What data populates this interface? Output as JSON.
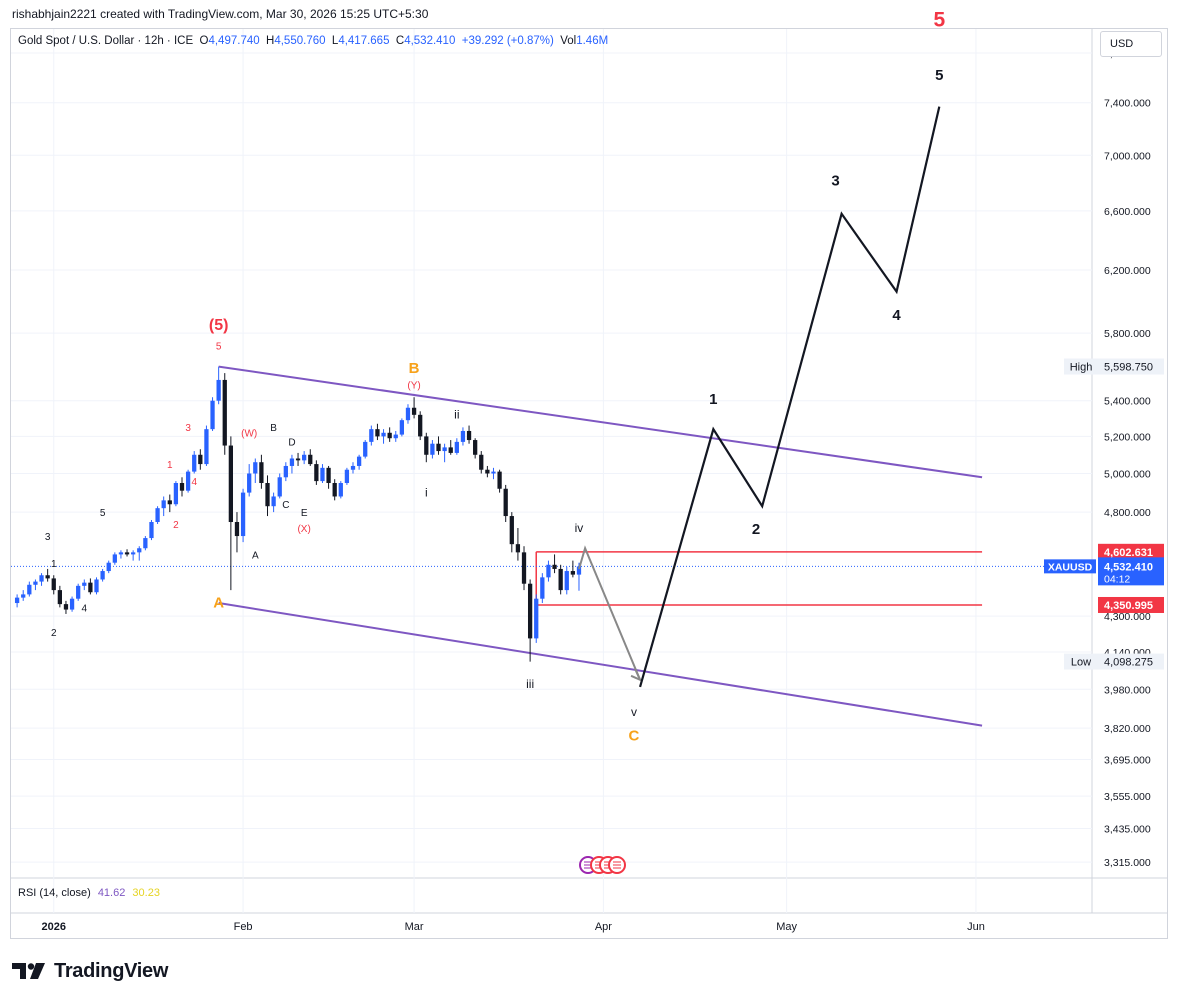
{
  "header": {
    "credit": "rishabhjain2221 created with TradingView.com, Mar 30, 2026 15:25 UTC+5:30"
  },
  "legend": {
    "symbol": "Gold Spot / U.S. Dollar · 12h · ICE",
    "o_label": "O",
    "o": "4,497.740",
    "h_label": "H",
    "h": "4,550.760",
    "l_label": "L",
    "l": "4,417.665",
    "c_label": "C",
    "c": "4,532.410",
    "change": "+39.292 (+0.87%)",
    "vol_label": "Vol",
    "vol": "1.46M"
  },
  "currency": "USD",
  "rsi": {
    "label": "RSI (14, close)",
    "value1": "41.62",
    "value2": "30.23"
  },
  "brand": {
    "name": "TradingView"
  },
  "colors": {
    "up": "#2962ff",
    "down": "#131722",
    "channel": "#7e57c2",
    "box": "#f23645",
    "orange": "#f7a21b",
    "red": "#f23645"
  },
  "chart_data": {
    "type": "candlestick",
    "symbol": "XAUUSD",
    "y_scale": "log",
    "ylim": [
      3260,
      8000
    ],
    "y_ticks": [
      {
        "value": 7800,
        "label": "7,800.000"
      },
      {
        "value": 7400,
        "label": "7,400.000"
      },
      {
        "value": 7000,
        "label": "7,000.000"
      },
      {
        "value": 6600,
        "label": "6,600.000"
      },
      {
        "value": 6200,
        "label": "6,200.000"
      },
      {
        "value": 5800,
        "label": "5,800.000"
      },
      {
        "value": 5400,
        "label": "5,400.000"
      },
      {
        "value": 5200,
        "label": "5,200.000"
      },
      {
        "value": 5000,
        "label": "5,000.000"
      },
      {
        "value": 4800,
        "label": "4,800.000"
      },
      {
        "value": 4300,
        "label": "4,300.000"
      },
      {
        "value": 4140,
        "label": "4,140.000"
      },
      {
        "value": 3980,
        "label": "3,980.000"
      },
      {
        "value": 3820,
        "label": "3,820.000"
      },
      {
        "value": 3695,
        "label": "3,695.000"
      },
      {
        "value": 3555,
        "label": "3,555.000"
      },
      {
        "value": 3435,
        "label": "3,435.000"
      },
      {
        "value": 3315,
        "label": "3,315.000"
      }
    ],
    "x_ticks": [
      {
        "date": "2026-01-01",
        "label": "2026",
        "bold": true
      },
      {
        "date": "2026-02-01",
        "label": "Feb"
      },
      {
        "date": "2026-03-01",
        "label": "Mar"
      },
      {
        "date": "2026-04-01",
        "label": "Apr"
      },
      {
        "date": "2026-05-01",
        "label": "May"
      },
      {
        "date": "2026-06-01",
        "label": "Jun"
      }
    ],
    "xlim": [
      "2025-12-25",
      "2026-06-20"
    ],
    "price_badges": [
      {
        "value": 4602.631,
        "label": "4,602.631",
        "color": "#f23645"
      },
      {
        "value": 4532.41,
        "label": "4,532.410",
        "color": "#2962ff",
        "symbol": "XAUUSD",
        "timer": "04:12"
      },
      {
        "value": 4350.995,
        "label": "4,350.995",
        "color": "#f23645"
      }
    ],
    "high": {
      "label": "High",
      "value": 5598.75,
      "value_label": "5,598.750"
    },
    "low": {
      "label": "Low",
      "value": 4098.275,
      "value_label": "4,098.275"
    },
    "candles": [
      [
        "2025-12-26",
        4360,
        4400,
        4340,
        4385
      ],
      [
        "2025-12-27",
        4385,
        4420,
        4370,
        4400
      ],
      [
        "2025-12-28",
        4400,
        4460,
        4390,
        4445
      ],
      [
        "2025-12-29",
        4445,
        4470,
        4420,
        4460
      ],
      [
        "2025-12-30",
        4460,
        4500,
        4440,
        4490
      ],
      [
        "2025-12-31",
        4490,
        4520,
        4460,
        4475
      ],
      [
        "2026-01-01",
        4475,
        4490,
        4400,
        4420
      ],
      [
        "2026-01-02",
        4420,
        4440,
        4340,
        4355
      ],
      [
        "2026-01-03",
        4355,
        4370,
        4310,
        4330
      ],
      [
        "2026-01-04",
        4330,
        4390,
        4320,
        4380
      ],
      [
        "2026-01-05",
        4380,
        4450,
        4370,
        4440
      ],
      [
        "2026-01-06",
        4440,
        4470,
        4420,
        4455
      ],
      [
        "2026-01-07",
        4455,
        4475,
        4400,
        4410
      ],
      [
        "2026-01-08",
        4410,
        4480,
        4400,
        4470
      ],
      [
        "2026-01-09",
        4470,
        4520,
        4460,
        4510
      ],
      [
        "2026-01-10",
        4510,
        4560,
        4500,
        4550
      ],
      [
        "2026-01-11",
        4550,
        4600,
        4540,
        4590
      ],
      [
        "2026-01-12",
        4590,
        4610,
        4570,
        4600
      ],
      [
        "2026-01-13",
        4600,
        4615,
        4580,
        4590
      ],
      [
        "2026-01-14",
        4590,
        4610,
        4560,
        4600
      ],
      [
        "2026-01-15",
        4600,
        4630,
        4560,
        4620
      ],
      [
        "2026-01-16",
        4620,
        4680,
        4610,
        4670
      ],
      [
        "2026-01-17",
        4670,
        4760,
        4660,
        4750
      ],
      [
        "2026-01-18",
        4750,
        4830,
        4740,
        4820
      ],
      [
        "2026-01-19",
        4820,
        4880,
        4780,
        4860
      ],
      [
        "2026-01-20",
        4860,
        4890,
        4800,
        4840
      ],
      [
        "2026-01-21",
        4840,
        4960,
        4830,
        4950
      ],
      [
        "2026-01-22",
        4950,
        4980,
        4880,
        4910
      ],
      [
        "2026-01-23",
        4910,
        5020,
        4900,
        5010
      ],
      [
        "2026-01-24",
        5010,
        5120,
        5000,
        5100
      ],
      [
        "2026-01-25",
        5100,
        5130,
        5020,
        5050
      ],
      [
        "2026-01-26",
        5050,
        5260,
        5040,
        5240
      ],
      [
        "2026-01-27",
        5240,
        5420,
        5230,
        5400
      ],
      [
        "2026-01-28",
        5400,
        5598,
        5380,
        5520
      ],
      [
        "2026-01-29",
        5520,
        5560,
        5100,
        5150
      ],
      [
        "2026-01-30",
        5150,
        5200,
        4420,
        4750
      ],
      [
        "2026-01-31",
        4750,
        4800,
        4600,
        4680
      ],
      [
        "2026-02-01",
        4680,
        4920,
        4650,
        4900
      ],
      [
        "2026-02-02",
        4900,
        5050,
        4880,
        5000
      ],
      [
        "2026-02-03",
        5000,
        5080,
        4950,
        5060
      ],
      [
        "2026-02-04",
        5060,
        5100,
        4920,
        4950
      ],
      [
        "2026-02-05",
        4950,
        4990,
        4780,
        4830
      ],
      [
        "2026-02-06",
        4830,
        4900,
        4800,
        4880
      ],
      [
        "2026-02-07",
        4880,
        5000,
        4870,
        4980
      ],
      [
        "2026-02-08",
        4980,
        5060,
        4960,
        5040
      ],
      [
        "2026-02-09",
        5040,
        5100,
        5000,
        5080
      ],
      [
        "2026-02-10",
        5080,
        5110,
        5040,
        5070
      ],
      [
        "2026-02-11",
        5070,
        5120,
        5050,
        5100
      ],
      [
        "2026-02-12",
        5100,
        5130,
        5040,
        5050
      ],
      [
        "2026-02-13",
        5050,
        5070,
        4940,
        4960
      ],
      [
        "2026-02-14",
        4960,
        5050,
        4950,
        5030
      ],
      [
        "2026-02-15",
        5030,
        5040,
        4920,
        4950
      ],
      [
        "2026-02-16",
        4950,
        4970,
        4860,
        4880
      ],
      [
        "2026-02-17",
        4880,
        4960,
        4870,
        4950
      ],
      [
        "2026-02-18",
        4950,
        5030,
        4940,
        5020
      ],
      [
        "2026-02-19",
        5020,
        5060,
        5000,
        5040
      ],
      [
        "2026-02-20",
        5040,
        5100,
        5020,
        5090
      ],
      [
        "2026-02-21",
        5090,
        5180,
        5080,
        5170
      ],
      [
        "2026-02-22",
        5170,
        5260,
        5150,
        5240
      ],
      [
        "2026-02-23",
        5240,
        5270,
        5180,
        5200
      ],
      [
        "2026-02-24",
        5200,
        5240,
        5160,
        5220
      ],
      [
        "2026-02-25",
        5220,
        5250,
        5170,
        5190
      ],
      [
        "2026-02-26",
        5190,
        5230,
        5170,
        5210
      ],
      [
        "2026-02-27",
        5210,
        5300,
        5200,
        5290
      ],
      [
        "2026-02-28",
        5290,
        5380,
        5270,
        5360
      ],
      [
        "2026-03-01",
        5360,
        5420,
        5300,
        5320
      ],
      [
        "2026-03-02",
        5320,
        5340,
        5180,
        5200
      ],
      [
        "2026-03-03",
        5200,
        5220,
        5060,
        5100
      ],
      [
        "2026-03-04",
        5100,
        5180,
        5080,
        5160
      ],
      [
        "2026-03-05",
        5160,
        5200,
        5100,
        5120
      ],
      [
        "2026-03-06",
        5120,
        5160,
        5060,
        5140
      ],
      [
        "2026-03-07",
        5140,
        5180,
        5100,
        5110
      ],
      [
        "2026-03-08",
        5110,
        5190,
        5100,
        5170
      ],
      [
        "2026-03-09",
        5170,
        5250,
        5150,
        5230
      ],
      [
        "2026-03-10",
        5230,
        5260,
        5160,
        5180
      ],
      [
        "2026-03-11",
        5180,
        5190,
        5080,
        5100
      ],
      [
        "2026-03-12",
        5100,
        5120,
        5000,
        5020
      ],
      [
        "2026-03-13",
        5020,
        5040,
        4980,
        5000
      ],
      [
        "2026-03-14",
        5000,
        5030,
        4970,
        5010
      ],
      [
        "2026-03-15",
        5010,
        5020,
        4900,
        4920
      ],
      [
        "2026-03-16",
        4920,
        4940,
        4750,
        4780
      ],
      [
        "2026-03-17",
        4780,
        4800,
        4600,
        4640
      ],
      [
        "2026-03-18",
        4640,
        4720,
        4560,
        4600
      ],
      [
        "2026-03-19",
        4600,
        4630,
        4420,
        4450
      ],
      [
        "2026-03-20",
        4450,
        4470,
        4098,
        4200
      ],
      [
        "2026-03-21",
        4200,
        4400,
        4180,
        4380
      ],
      [
        "2026-03-22",
        4380,
        4500,
        4360,
        4480
      ],
      [
        "2026-03-23",
        4480,
        4560,
        4460,
        4540
      ],
      [
        "2026-03-24",
        4540,
        4590,
        4500,
        4520
      ],
      [
        "2026-03-25",
        4520,
        4540,
        4400,
        4420
      ],
      [
        "2026-03-26",
        4420,
        4530,
        4400,
        4510
      ],
      [
        "2026-03-27",
        4510,
        4560,
        4480,
        4493
      ],
      [
        "2026-03-28",
        4493,
        4550,
        4417,
        4532
      ]
    ],
    "channel_lines": [
      {
        "from": [
          "2026-01-28",
          5598
        ],
        "to": [
          "2026-06-02",
          4980
        ]
      },
      {
        "from": [
          "2026-01-28",
          4360
        ],
        "to": [
          "2026-06-02",
          3830
        ]
      }
    ],
    "range_box": {
      "from": "2026-03-21",
      "to": "2026-06-02",
      "top": 4602.631,
      "bottom": 4350.995
    },
    "projection_gray": [
      [
        "2026-03-28",
        4520
      ],
      [
        "2026-03-29",
        4620
      ],
      [
        "2026-04-07",
        4020
      ]
    ],
    "projection_black": [
      [
        "2026-04-07",
        3990
      ],
      [
        "2026-04-19",
        5240
      ],
      [
        "2026-04-27",
        4830
      ],
      [
        "2026-05-10",
        6580
      ],
      [
        "2026-05-19",
        6060
      ],
      [
        "2026-05-26",
        7370
      ]
    ],
    "annotations": [
      {
        "text": "(5)",
        "date": "2026-01-28",
        "price": 5820,
        "color": "#f23645",
        "size": 16
      },
      {
        "text": "5",
        "date": "2026-01-28",
        "price": 5700,
        "color": "#f23645",
        "size": 10
      },
      {
        "text": "1",
        "date": "2026-01-01",
        "price": 4530,
        "color": "#131722",
        "size": 10
      },
      {
        "text": "2",
        "date": "2026-01-01",
        "price": 4210,
        "color": "#131722",
        "size": 10
      },
      {
        "text": "3",
        "date": "2025-12-31",
        "price": 4660,
        "color": "#131722",
        "size": 10
      },
      {
        "text": "4",
        "date": "2026-01-06",
        "price": 4320,
        "color": "#131722",
        "size": 10
      },
      {
        "text": "5",
        "date": "2026-01-09",
        "price": 4780,
        "color": "#131722",
        "size": 10
      },
      {
        "text": "1",
        "date": "2026-01-20",
        "price": 5030,
        "color": "#f23645",
        "size": 10
      },
      {
        "text": "2",
        "date": "2026-01-21",
        "price": 4720,
        "color": "#f23645",
        "size": 10
      },
      {
        "text": "3",
        "date": "2026-01-23",
        "price": 5230,
        "color": "#f23645",
        "size": 10
      },
      {
        "text": "4",
        "date": "2026-01-24",
        "price": 4940,
        "color": "#f23645",
        "size": 10
      },
      {
        "text": "(W)",
        "date": "2026-02-02",
        "price": 5200,
        "color": "#f23645",
        "size": 10
      },
      {
        "text": "A",
        "date": "2026-01-28",
        "price": 4340,
        "color": "#f7a21b",
        "size": 15
      },
      {
        "text": "A",
        "date": "2026-02-03",
        "price": 4570,
        "color": "#131722",
        "size": 10
      },
      {
        "text": "B",
        "date": "2026-02-06",
        "price": 5230,
        "color": "#131722",
        "size": 10
      },
      {
        "text": "C",
        "date": "2026-02-08",
        "price": 4820,
        "color": "#131722",
        "size": 10
      },
      {
        "text": "D",
        "date": "2026-02-09",
        "price": 5150,
        "color": "#131722",
        "size": 10
      },
      {
        "text": "E",
        "date": "2026-02-11",
        "price": 4780,
        "color": "#131722",
        "size": 10
      },
      {
        "text": "(X)",
        "date": "2026-02-11",
        "price": 4700,
        "color": "#f23645",
        "size": 10
      },
      {
        "text": "B",
        "date": "2026-03-01",
        "price": 5560,
        "color": "#f7a21b",
        "size": 15
      },
      {
        "text": "(Y)",
        "date": "2026-03-01",
        "price": 5470,
        "color": "#f23645",
        "size": 10
      },
      {
        "text": "ii",
        "date": "2026-03-08",
        "price": 5300,
        "color": "#131722",
        "size": 12
      },
      {
        "text": "i",
        "date": "2026-03-03",
        "price": 4880,
        "color": "#131722",
        "size": 12
      },
      {
        "text": "iii",
        "date": "2026-03-20",
        "price": 3985,
        "color": "#131722",
        "size": 12
      },
      {
        "text": "iv",
        "date": "2026-03-28",
        "price": 4700,
        "color": "#131722",
        "size": 12
      },
      {
        "text": "v",
        "date": "2026-04-06",
        "price": 3870,
        "color": "#131722",
        "size": 12
      },
      {
        "text": "C",
        "date": "2026-04-06",
        "price": 3770,
        "color": "#f7a21b",
        "size": 15
      },
      {
        "text": "1",
        "date": "2026-04-19",
        "price": 5380,
        "color": "#131722",
        "size": 15
      },
      {
        "text": "2",
        "date": "2026-04-26",
        "price": 4690,
        "color": "#131722",
        "size": 15
      },
      {
        "text": "3",
        "date": "2026-05-09",
        "price": 6780,
        "color": "#131722",
        "size": 15
      },
      {
        "text": "4",
        "date": "2026-05-19",
        "price": 5880,
        "color": "#131722",
        "size": 15
      },
      {
        "text": "5",
        "date": "2026-05-26",
        "price": 7580,
        "color": "#131722",
        "size": 15
      },
      {
        "text": "5",
        "date": "2026-05-26",
        "price": 8020,
        "color": "#f23645",
        "size": 21
      }
    ]
  }
}
